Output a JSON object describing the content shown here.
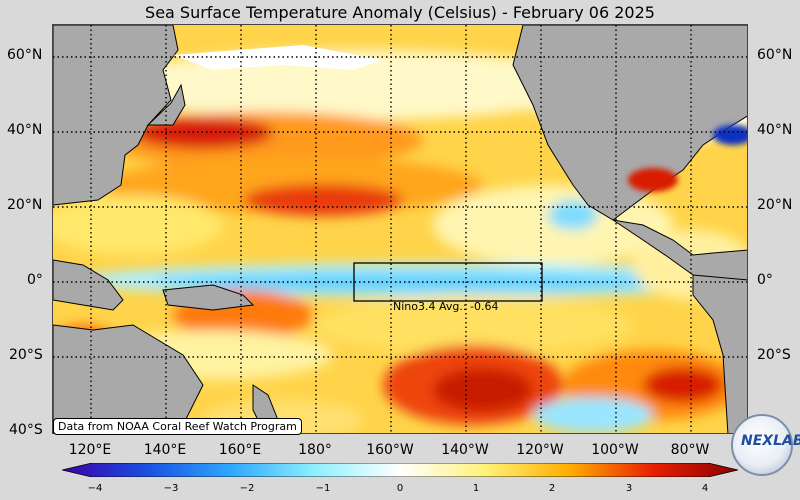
{
  "title": "Sea Surface Temperature Anomaly (Celsius) - February 06 2025",
  "lat_labels": [
    "60°N",
    "40°N",
    "20°N",
    "0°",
    "20°S",
    "40°S"
  ],
  "lon_labels": [
    "120°E",
    "140°E",
    "160°E",
    "180°",
    "160°W",
    "140°W",
    "120°W",
    "100°W",
    "80°W"
  ],
  "colorbar": {
    "min": -4,
    "max": 4,
    "ticks": [
      "−4",
      "−3",
      "−2",
      "−1",
      "0",
      "1",
      "2",
      "3",
      "4"
    ],
    "colors": [
      "#3b00a8",
      "#1a4fe0",
      "#2fa8ff",
      "#8ff0ff",
      "#ffffff",
      "#fff27a",
      "#ffae00",
      "#e81e00",
      "#8a0000"
    ]
  },
  "nino_box": {
    "label": "Nino3.4 Avg.: -0.64",
    "value": -0.64
  },
  "credit": "Data from NOAA Coral Reef Watch Program",
  "logo_text": "NEXLAB",
  "colors": {
    "land": "#a9a9a9",
    "background": "#d9d9d9"
  }
}
